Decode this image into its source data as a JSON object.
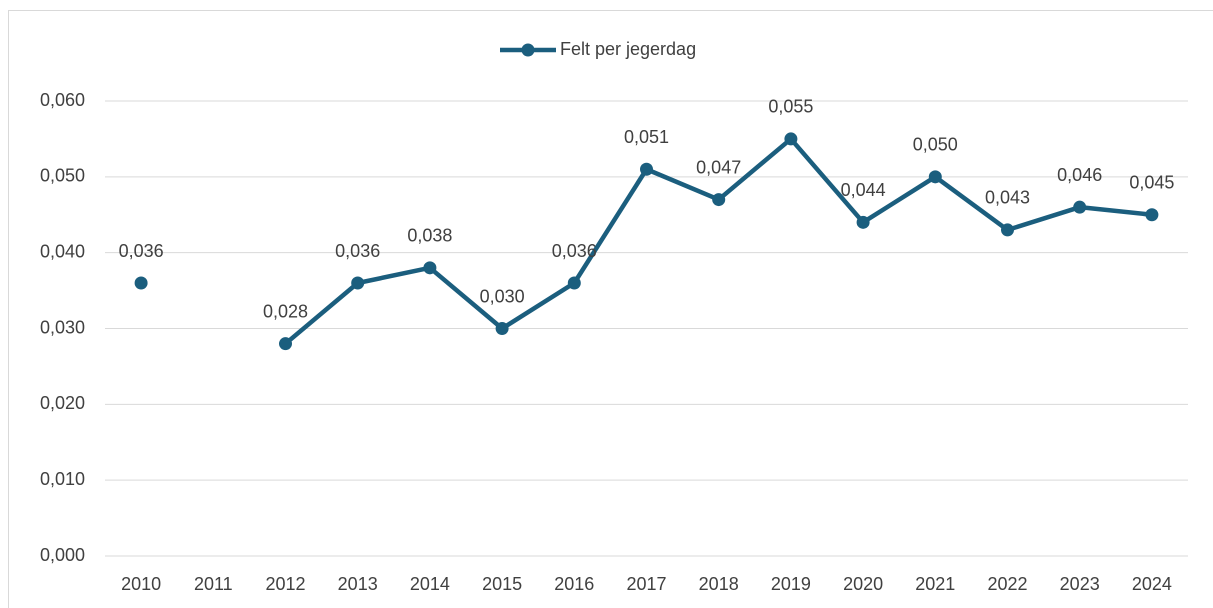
{
  "chart_data": {
    "type": "line",
    "categories": [
      "2010",
      "2011",
      "2012",
      "2013",
      "2014",
      "2015",
      "2016",
      "2017",
      "2018",
      "2019",
      "2020",
      "2021",
      "2022",
      "2023",
      "2024"
    ],
    "series": [
      {
        "name": "Felt per jegerdag",
        "color": "#1b5e7e",
        "values": [
          0.036,
          null,
          0.028,
          0.036,
          0.038,
          0.03,
          0.036,
          0.051,
          0.047,
          0.055,
          0.044,
          0.05,
          0.043,
          0.046,
          0.045
        ],
        "value_labels": [
          "0,036",
          null,
          "0,028",
          "0,036",
          "0,038",
          "0,030",
          "0,036",
          "0,051",
          "0,047",
          "0,055",
          "0,044",
          "0,050",
          "0,043",
          "0,046",
          "0,045"
        ]
      }
    ],
    "ylim": [
      0,
      0.06
    ],
    "yticks": [
      {
        "value": 0,
        "label": "0,000"
      },
      {
        "value": 0.01,
        "label": "0,010"
      },
      {
        "value": 0.02,
        "label": "0,020"
      },
      {
        "value": 0.03,
        "label": "0,030"
      },
      {
        "value": 0.04,
        "label": "0,040"
      },
      {
        "value": 0.05,
        "label": "0,050"
      },
      {
        "value": 0.06,
        "label": "0,060"
      }
    ],
    "grid": true,
    "legend": "top"
  }
}
